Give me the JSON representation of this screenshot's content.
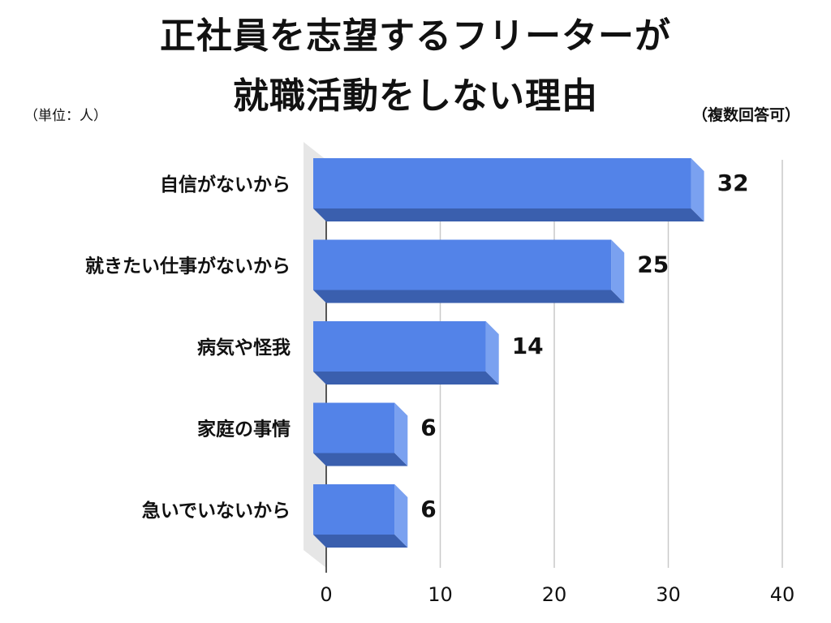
{
  "title_line1": "正社員を志望するフリーターが",
  "title_line2": "就職活動をしない理由",
  "unit_note": "（単位：人）",
  "multi_answer_note": "（複数回答可）",
  "colors": {
    "bar_face": "#5383e8",
    "bar_bottom": "#3a5fae",
    "bar_side": "#7aa1f0",
    "floor": "#e6e6e6",
    "grid": "#c9c9c9"
  },
  "chart_data": {
    "type": "bar",
    "orientation": "horizontal",
    "style": "3d",
    "title": "正社員を志望するフリーターが就職活動をしない理由",
    "unit": "（単位：人）",
    "note": "（複数回答可）",
    "categories": [
      "自信がないから",
      "就きたい仕事がないから",
      "病気や怪我",
      "家庭の事情",
      "急いでいないから"
    ],
    "values": [
      32,
      25,
      14,
      6,
      6
    ],
    "value_labels": [
      "32",
      "25",
      "14",
      "6",
      "6"
    ],
    "xlim": [
      0,
      40
    ],
    "xticks": [
      "0",
      "10",
      "20",
      "30",
      "40"
    ],
    "grid": true,
    "legend": "none"
  }
}
